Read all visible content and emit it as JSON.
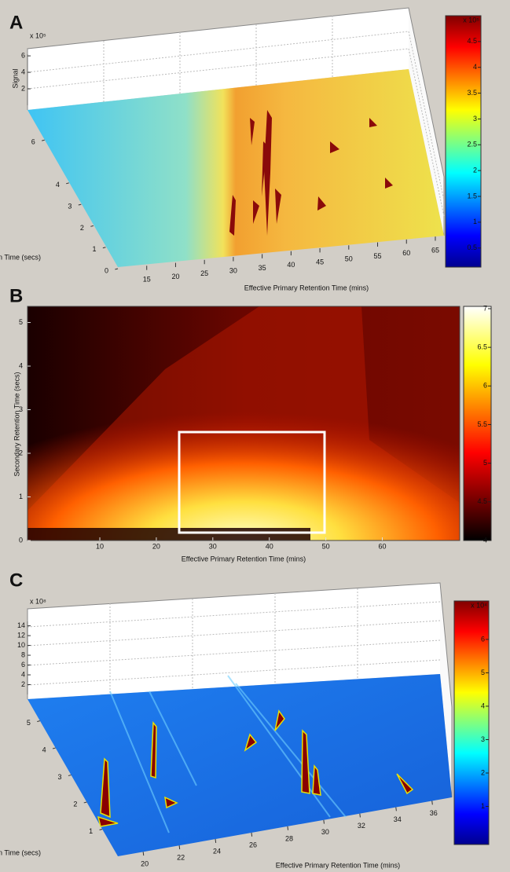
{
  "chart_data": [
    {
      "type": "surface3d",
      "panel_label": "A",
      "xlabel": "Effective Primary Retention Time (mins)",
      "ylabel": "Secondary Retention Time (secs)",
      "zlabel": "Signal",
      "xlim": [
        10,
        66.5
      ],
      "xticks": [
        15,
        20,
        25,
        30,
        35,
        40,
        45,
        50,
        55,
        60,
        65
      ],
      "ylim": [
        0,
        7.4
      ],
      "yticks": [
        0,
        1,
        2,
        3,
        4,
        6
      ],
      "zlim": [
        0,
        6.2
      ],
      "zticks": [
        2,
        4,
        6
      ],
      "z_multiplier": "x 10⁵",
      "colorbar": {
        "colormap": "jet",
        "clim": [
          0.13,
          5
        ],
        "ticks": [
          0.5,
          1,
          1.5,
          2,
          2.5,
          3,
          3.5,
          4,
          4.5
        ],
        "multiplier": "x 10⁵"
      }
    },
    {
      "type": "heatmap",
      "panel_label": "B",
      "xlabel": "Effective Primary Retention Time (mins)",
      "ylabel": "Secondary Retention Time (secs)",
      "xlim": [
        -2.8,
        73.7
      ],
      "xticks": [
        10,
        20,
        30,
        40,
        50,
        60
      ],
      "ylim": [
        0,
        5.37
      ],
      "yticks": [
        0,
        1,
        2,
        3,
        4,
        5
      ],
      "colorbar": {
        "colormap": "hot",
        "clim": [
          4,
          7.03
        ],
        "ticks": [
          4,
          4.5,
          5,
          5.5,
          6,
          6.5,
          7
        ]
      }
    },
    {
      "type": "surface3d",
      "panel_label": "C",
      "xlabel": "Effective Primary Retention Time (mins)",
      "ylabel": "Secondary Retention Time (secs)",
      "xlim": [
        18.6,
        37.1
      ],
      "xticks": [
        20,
        22,
        24,
        26,
        28,
        30,
        32,
        34,
        36
      ],
      "ylim": [
        0,
        5.8
      ],
      "yticks": [
        1,
        2,
        3,
        4,
        5
      ],
      "zlim": [
        0,
        14.9
      ],
      "zticks": [
        2,
        4,
        6,
        8,
        10,
        12,
        14
      ],
      "z_multiplier": "x 10⁸",
      "colorbar": {
        "colormap": "jet",
        "clim": [
          -0.14,
          7.15
        ],
        "ticks": [
          1,
          2,
          3,
          4,
          5,
          6
        ],
        "multiplier": "x 10⁴"
      }
    }
  ]
}
